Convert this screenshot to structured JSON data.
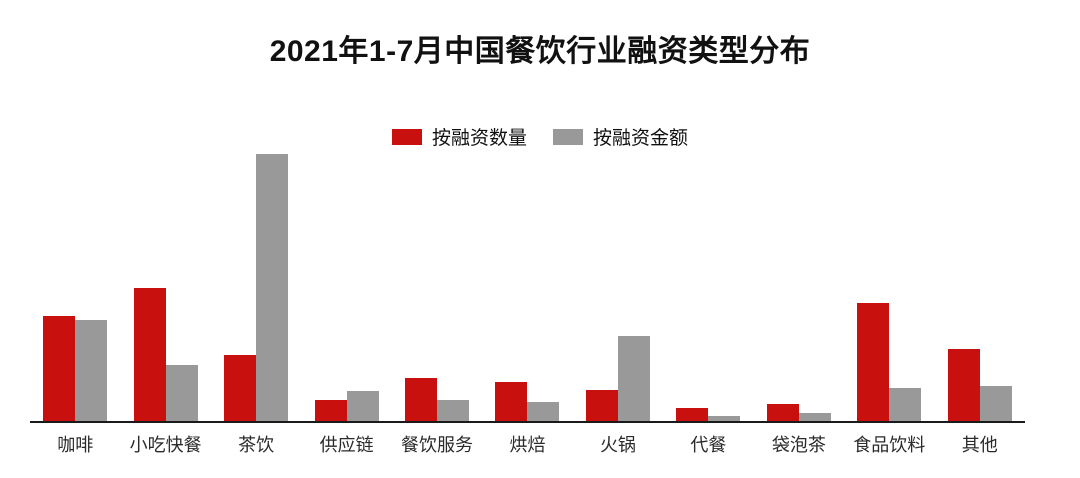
{
  "page": {
    "background": "#ffffff"
  },
  "title": "2021年1-7月中国餐饮行业融资类型分布",
  "legend": [
    {
      "label": "按融资数量",
      "color": "#c8100e"
    },
    {
      "label": "按融资金额",
      "color": "#999999"
    }
  ],
  "colors": {
    "series_count_red": "#c8100e",
    "series_amount_gray": "#999999",
    "axis_line": "#1a1a1a",
    "title_text": "#111111",
    "axis_label_text": "#2b2b2b"
  },
  "chart_data": {
    "type": "bar",
    "title": "2021年1-7月中国餐饮行业融资类型分布",
    "categories": [
      "咖啡",
      "小吃快餐",
      "茶饮",
      "供应链",
      "餐饮服务",
      "烘焙",
      "火锅",
      "代餐",
      "袋泡茶",
      "食品饮料",
      "其他"
    ],
    "series": [
      {
        "name": "按融资数量",
        "color": "#c8100e",
        "values": [
          16.0,
          20.2,
          10.0,
          3.2,
          6.5,
          5.9,
          4.7,
          2.0,
          2.6,
          17.9,
          10.9
        ]
      },
      {
        "name": "按融资金额",
        "color": "#999999",
        "values": [
          15.3,
          8.5,
          40.5,
          4.5,
          3.2,
          2.9,
          12.9,
          0.8,
          1.2,
          5.0,
          5.3
        ]
      }
    ],
    "xlabel": "",
    "ylabel": "",
    "ylim": [
      0,
      41
    ],
    "value_units": "percent share (estimated from bar heights; no value axis shown)",
    "grid": false,
    "y_axis_shown": false,
    "legend_position": "top-center"
  }
}
